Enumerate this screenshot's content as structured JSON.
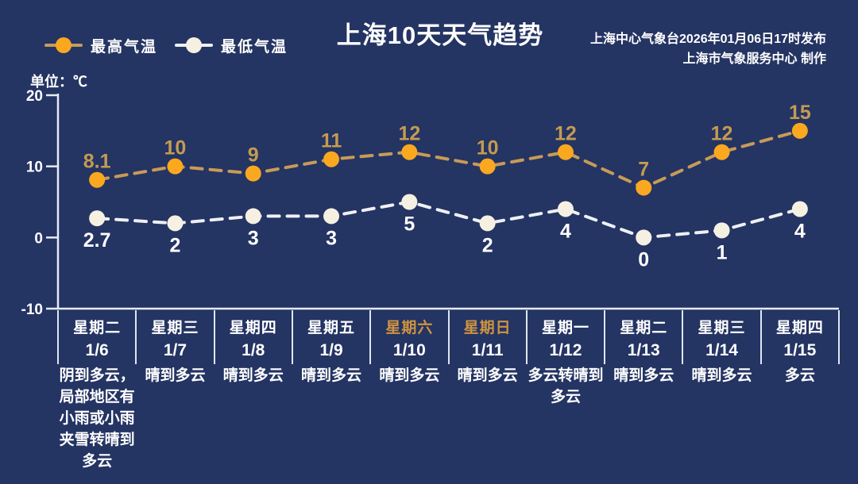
{
  "meta": {
    "title": "上海10天天气趋势",
    "issued_line": "上海中心气象台2026年01月06日17时发布",
    "producer_line": "上海市气象服务中心  制作",
    "unit_label": "单位：℃"
  },
  "colors": {
    "background": "#243463",
    "text": "#ffffff",
    "axis": "#e6ebf5",
    "high_line": "#c79b57",
    "high_marker": "#f9a81f",
    "high_label": "#c49b52",
    "low_line": "#edf0f5",
    "low_marker": "#f6f0e2",
    "low_label": "#ffffff",
    "highlight_weekday": "#ce9440"
  },
  "chart_data": {
    "type": "line",
    "title": "上海10天天气趋势",
    "ylabel": "单位：℃",
    "ylim": [
      -10,
      20
    ],
    "yticks": [
      20,
      10,
      0,
      -10
    ],
    "grid": false,
    "legend_position": "top-left",
    "line_style": "dashed",
    "categories": [
      "1/6",
      "1/7",
      "1/8",
      "1/9",
      "1/10",
      "1/11",
      "1/12",
      "1/13",
      "1/14",
      "1/15"
    ],
    "days": [
      {
        "weekday": "星期二",
        "date": "1/6",
        "weather": "阴到多云，局部地区有小雨或小雨夹雪转晴到多云",
        "highlight": false
      },
      {
        "weekday": "星期三",
        "date": "1/7",
        "weather": "晴到多云",
        "highlight": false
      },
      {
        "weekday": "星期四",
        "date": "1/8",
        "weather": "晴到多云",
        "highlight": false
      },
      {
        "weekday": "星期五",
        "date": "1/9",
        "weather": "晴到多云",
        "highlight": false
      },
      {
        "weekday": "星期六",
        "date": "1/10",
        "weather": "晴到多云",
        "highlight": true
      },
      {
        "weekday": "星期日",
        "date": "1/11",
        "weather": "晴到多云",
        "highlight": true
      },
      {
        "weekday": "星期一",
        "date": "1/12",
        "weather": "多云转晴到多云",
        "highlight": false
      },
      {
        "weekday": "星期二",
        "date": "1/13",
        "weather": "晴到多云",
        "highlight": false
      },
      {
        "weekday": "星期三",
        "date": "1/14",
        "weather": "晴到多云",
        "highlight": false
      },
      {
        "weekday": "星期四",
        "date": "1/15",
        "weather": "多云",
        "highlight": false
      }
    ],
    "series": [
      {
        "name": "最高气温",
        "values": [
          8.1,
          10,
          9,
          11,
          12,
          10,
          12,
          7,
          12,
          15
        ]
      },
      {
        "name": "最低气温",
        "values": [
          2.7,
          2,
          3,
          3,
          5,
          2,
          4,
          0,
          1,
          4
        ]
      }
    ]
  }
}
